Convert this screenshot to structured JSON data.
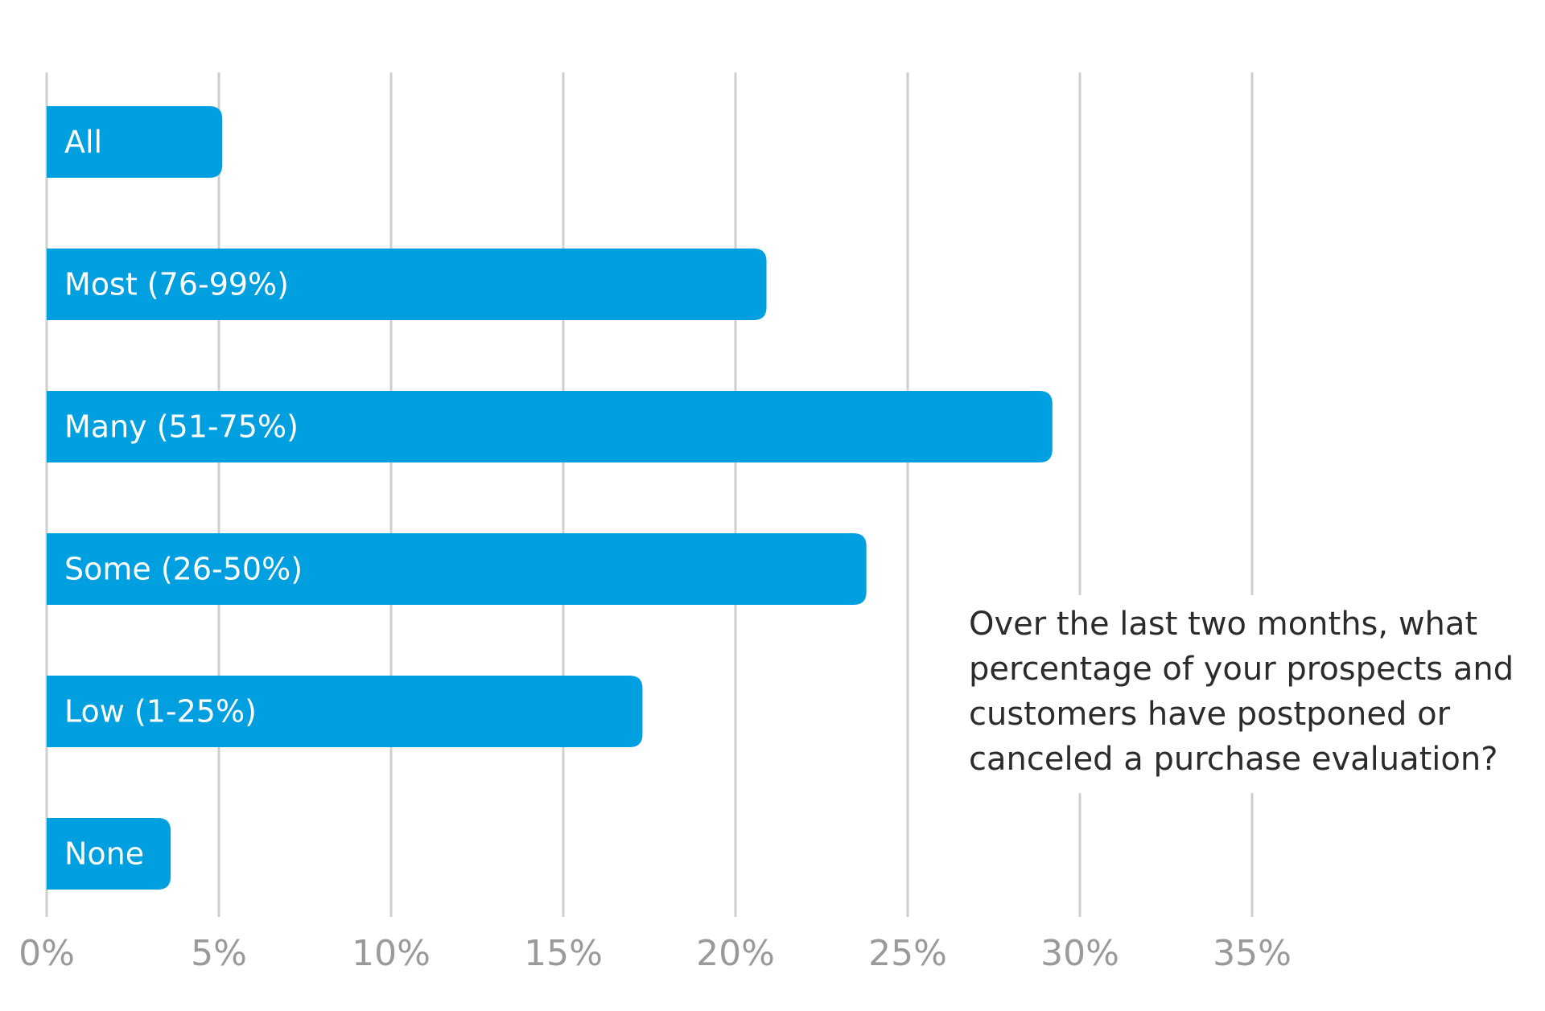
{
  "chart_data": {
    "type": "bar",
    "orientation": "horizontal",
    "categories": [
      "All",
      "Most (76-99%)",
      "Many (51-75%)",
      "Some (26-50%)",
      "Low (1-25%)",
      "None"
    ],
    "values": [
      5.1,
      20.9,
      29.2,
      23.8,
      17.3,
      3.6
    ],
    "x_ticks": [
      "0%",
      "5%",
      "10%",
      "15%",
      "20%",
      "25%",
      "30%",
      "35%"
    ],
    "x_tick_values": [
      0,
      5,
      10,
      15,
      20,
      25,
      30,
      35
    ],
    "xlim": [
      0,
      35
    ],
    "grid": true,
    "bar_color": "#009fdf",
    "annotation": "Over the last two months, what percentage of your prospects and customers have postponed or canceled a purchase evaluation?"
  }
}
